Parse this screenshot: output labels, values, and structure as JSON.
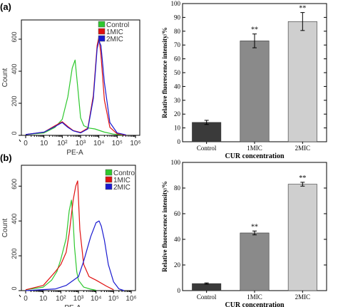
{
  "panel_labels": [
    "(a)",
    "(b)"
  ],
  "colors": {
    "control": "#2ec82e",
    "mic1": "#e01010",
    "mic2": "#1a1ad0",
    "bar_control": "#3a3a3a",
    "bar_1mic": "#8a8a8a",
    "bar_2mic": "#cfcfcf"
  },
  "chart_data": [
    {
      "panel": "(a)",
      "type": "line",
      "xlabel": "PE-A",
      "ylabel": "Count",
      "x_scale": "log",
      "x_ticks": [
        "0",
        "10",
        "10²",
        "10³",
        "10⁴",
        "10⁵",
        "10⁶"
      ],
      "x_tick_values": [
        1,
        10,
        100,
        1000,
        10000,
        100000,
        1000000
      ],
      "y_ticks": [
        "0",
        "200",
        "400",
        "600"
      ],
      "y_tick_values": [
        0,
        200,
        400,
        600
      ],
      "ylim": [
        0,
        720
      ],
      "legend": {
        "placement": "top-right",
        "entries": [
          "Control",
          "1MIC",
          "2MIC"
        ]
      },
      "series": [
        {
          "name": "Control",
          "color": "#2ec82e",
          "x": [
            1,
            10,
            40,
            100,
            200,
            350,
            500,
            700,
            1000,
            1500,
            3000,
            6000,
            20000,
            60000,
            200000
          ],
          "y": [
            5,
            15,
            50,
            100,
            240,
            420,
            470,
            300,
            110,
            60,
            45,
            40,
            20,
            8,
            2
          ]
        },
        {
          "name": "1MIC",
          "color": "#e01010",
          "x": [
            1,
            10,
            40,
            100,
            200,
            400,
            1000,
            2500,
            5000,
            8000,
            10000,
            13000,
            20000,
            40000,
            100000,
            300000
          ],
          "y": [
            5,
            20,
            60,
            85,
            55,
            30,
            18,
            45,
            250,
            560,
            615,
            500,
            220,
            50,
            10,
            2
          ]
        },
        {
          "name": "2MIC",
          "color": "#1a1ad0",
          "x": [
            1,
            10,
            40,
            100,
            200,
            400,
            1000,
            2500,
            5000,
            8000,
            10000,
            13000,
            20000,
            40000,
            100000,
            300000
          ],
          "y": [
            5,
            20,
            55,
            80,
            50,
            28,
            15,
            40,
            230,
            540,
            590,
            560,
            330,
            80,
            15,
            3
          ]
        }
      ]
    },
    {
      "panel": "(a)",
      "type": "bar",
      "xlabel": "CUR concentration",
      "ylabel": "Relative fluorescence intensity/%",
      "categories": [
        "Control",
        "1MIC",
        "2MIC"
      ],
      "values": [
        14,
        73,
        87
      ],
      "errors": [
        1.5,
        5,
        6.5
      ],
      "significance": [
        "",
        "**",
        "**"
      ],
      "ylim": [
        0,
        100
      ],
      "y_ticks": [
        0,
        10,
        20,
        30,
        40,
        50,
        60,
        70,
        80,
        90,
        100
      ]
    },
    {
      "panel": "(b)",
      "type": "line",
      "xlabel": "PE-A",
      "ylabel": "Count",
      "x_scale": "log",
      "x_ticks": [
        "0",
        "10",
        "10²",
        "10³",
        "10⁴",
        "10⁵",
        "10⁶"
      ],
      "x_tick_values": [
        1,
        10,
        100,
        1000,
        10000,
        100000,
        1000000
      ],
      "y_ticks": [
        "0",
        "200",
        "400",
        "600"
      ],
      "y_tick_values": [
        0,
        200,
        400,
        600
      ],
      "ylim": [
        0,
        720
      ],
      "legend": {
        "placement": "top-left",
        "entries": [
          "Control",
          "1MIC",
          "2MIC"
        ]
      },
      "series": [
        {
          "name": "Control",
          "color": "#2ec82e",
          "x": [
            1,
            10,
            30,
            60,
            100,
            200,
            300,
            400,
            500,
            600,
            800,
            1000,
            2000,
            5000,
            10000
          ],
          "y": [
            5,
            20,
            60,
            110,
            180,
            300,
            460,
            520,
            400,
            250,
            110,
            60,
            20,
            8,
            2
          ]
        },
        {
          "name": "1MIC",
          "color": "#e01010",
          "x": [
            1,
            10,
            50,
            100,
            200,
            300,
            500,
            700,
            900,
            1200,
            2000,
            4000,
            10000,
            40000,
            100000
          ],
          "y": [
            5,
            30,
            110,
            150,
            220,
            330,
            520,
            600,
            630,
            350,
            150,
            80,
            60,
            25,
            5
          ]
        },
        {
          "name": "2MIC",
          "color": "#1a1ad0",
          "x": [
            1,
            50,
            200,
            1000,
            2000,
            5000,
            10000,
            15000,
            20000,
            30000,
            50000,
            100000,
            200000,
            400000
          ],
          "y": [
            0,
            10,
            30,
            80,
            170,
            310,
            390,
            400,
            370,
            290,
            150,
            50,
            10,
            0
          ]
        }
      ]
    },
    {
      "panel": "(b)",
      "type": "bar",
      "xlabel": "CUR concentration",
      "ylabel": "Relative fluorescence intensity/%",
      "categories": [
        "Control",
        "1MIC",
        "2MIC"
      ],
      "values": [
        5.5,
        45,
        83
      ],
      "errors": [
        0.5,
        1.5,
        1.5
      ],
      "significance": [
        "",
        "**",
        "**"
      ],
      "ylim": [
        0,
        100
      ],
      "y_ticks": [
        0,
        20,
        40,
        60,
        80,
        100
      ]
    }
  ]
}
